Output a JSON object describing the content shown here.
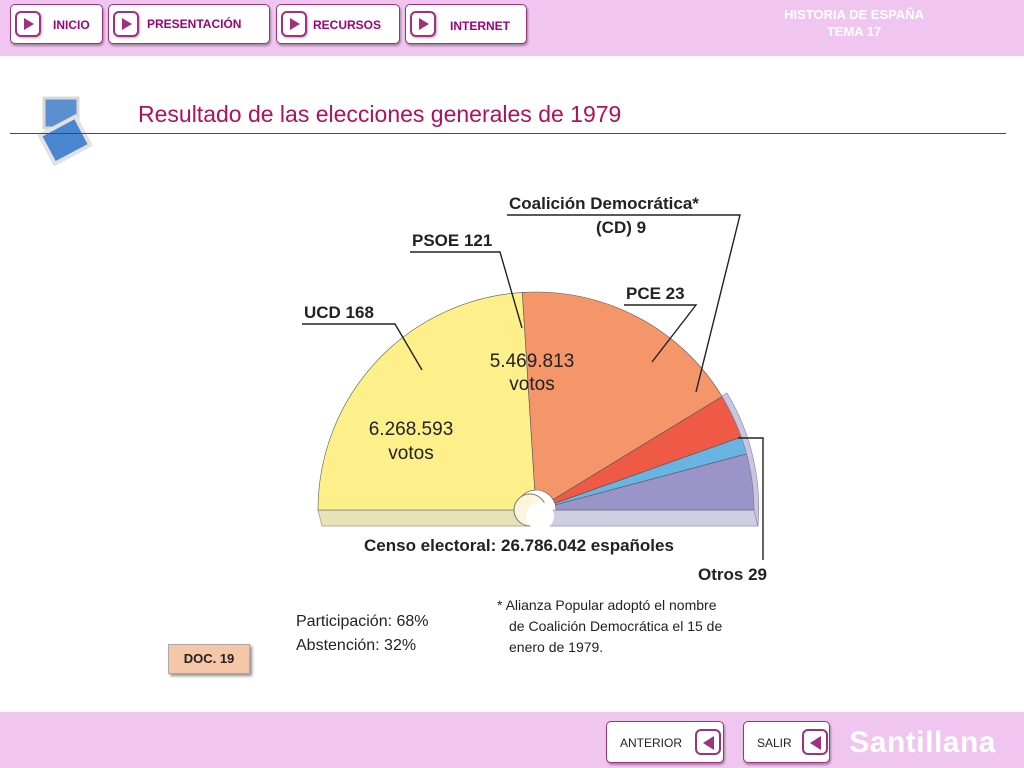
{
  "nav": {
    "buttons": [
      {
        "label": "INICIO"
      },
      {
        "label": "PRESENTACIÓN"
      },
      {
        "label": "RECURSOS"
      },
      {
        "label": "INTERNET"
      }
    ],
    "course_title": "HISTORIA DE ESPAÑA",
    "course_unit": "TEMA 17"
  },
  "page": {
    "title": "Resultado de las elecciones generales de 1979",
    "doc_label": "DOC. 19"
  },
  "footer": {
    "prev_label": "ANTERIOR",
    "exit_label": "SALIR",
    "brand": "Santillana"
  },
  "colors": {
    "accent": "#b0105e",
    "bar_bg": "#f0c6f0",
    "UCD": "#fdf08a",
    "PSOE": "#f5966a",
    "PCE": "#ee5a45",
    "CD": "#6ab4e4",
    "Otros": "#9a94c8"
  },
  "chart_data": {
    "type": "pie",
    "subtype": "semicircle-parliament",
    "unit": "escaños",
    "slices": [
      {
        "name": "UCD",
        "value": 168,
        "label": "UCD 168",
        "votes": "6.268.593",
        "votes_unit": "votos"
      },
      {
        "name": "PSOE",
        "value": 121,
        "label": "PSOE 121",
        "votes": "5.469.813",
        "votes_unit": "votos"
      },
      {
        "name": "PCE",
        "value": 23,
        "label": "PCE 23"
      },
      {
        "name": "Coalición Democrática*",
        "value": 9,
        "label_line1": "Coalición Democrática*",
        "label_line2": "(CD) 9"
      },
      {
        "name": "Otros",
        "value": 29,
        "label": "Otros 29"
      }
    ],
    "census": "Censo electoral: 26.786.042 españoles",
    "participation": "Participación: 68%",
    "abstention": "Abstención: 32%",
    "footnote": [
      "* Alianza Popular adoptó el nombre",
      "de Coalición Democrática el 15 de",
      "enero de 1979."
    ]
  }
}
